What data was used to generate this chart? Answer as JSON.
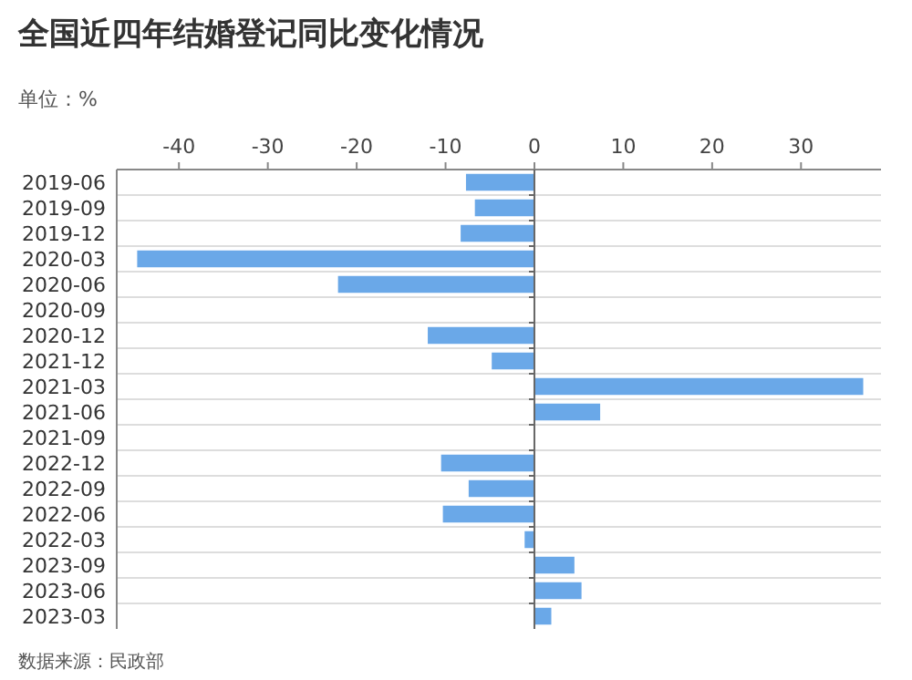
{
  "chart_data": {
    "type": "bar",
    "orientation": "horizontal",
    "title": "全国近四年结婚登记同比变化情况",
    "subtitle": "单位：%",
    "annotations": [
      "数据来源：民政部"
    ],
    "categories": [
      "2019-06",
      "2019-09",
      "2019-12",
      "2020-03",
      "2020-06",
      "2020-09",
      "2020-12",
      "2021-12",
      "2021-03",
      "2021-06",
      "2021-09",
      "2022-12",
      "2022-09",
      "2022-06",
      "2022-03",
      "2023-09",
      "2023-06",
      "2023-03"
    ],
    "values": [
      -7.7,
      -6.7,
      -8.3,
      -44.7,
      -22.1,
      null,
      -12.0,
      -4.8,
      37.0,
      7.4,
      null,
      -10.5,
      -7.4,
      -10.3,
      -1.1,
      4.5,
      5.3,
      1.9
    ],
    "color": "#6aa8e8",
    "xlim": [
      -47,
      39
    ],
    "xticks": [
      -40,
      -30,
      -20,
      -10,
      0,
      10,
      20,
      30
    ],
    "grid": "y"
  }
}
